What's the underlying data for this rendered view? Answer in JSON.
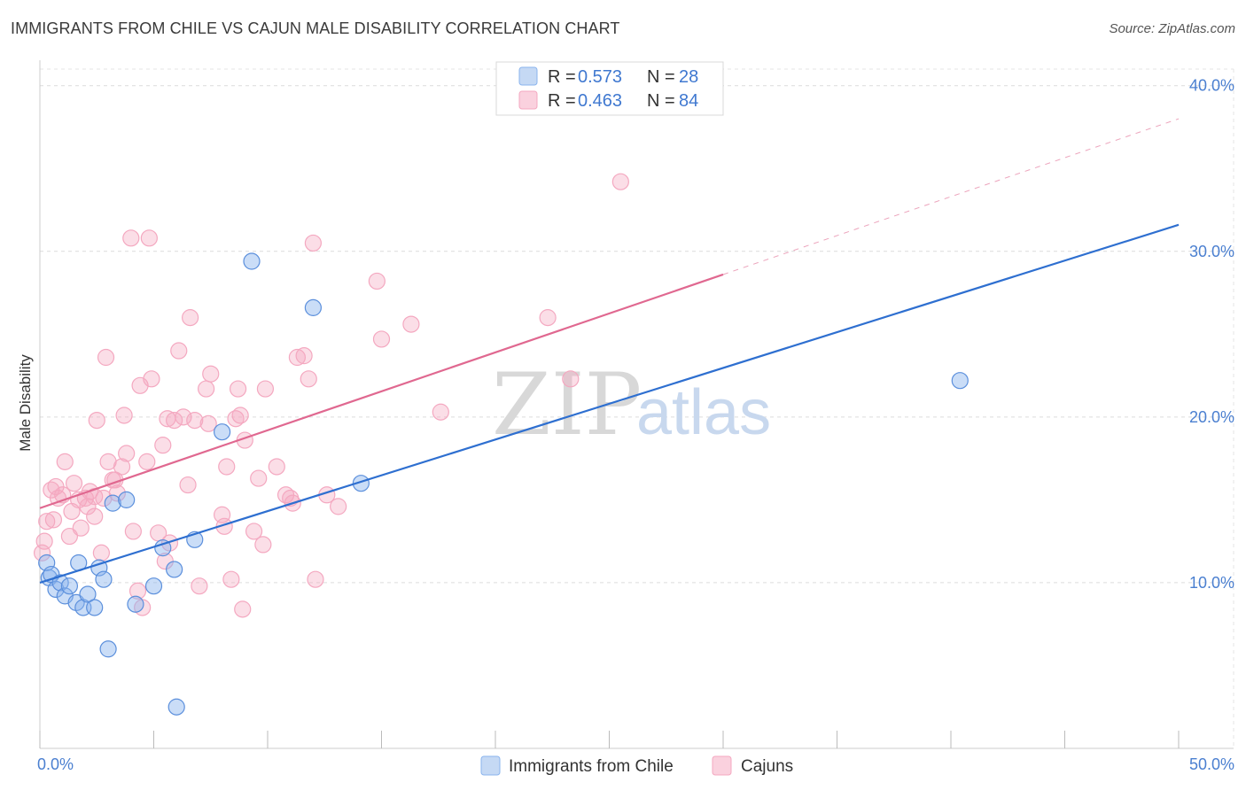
{
  "header": {
    "title": "IMMIGRANTS FROM CHILE VS CAJUN MALE DISABILITY CORRELATION CHART",
    "source": "Source: ZipAtlas.com"
  },
  "watermark": {
    "zip": "ZIP",
    "atlas": "atlas"
  },
  "colors": {
    "chile": "#8ab4ee",
    "chile_line": "#2e6fd0",
    "cajun": "#f4a8c0",
    "cajun_line": "#e06890",
    "tick_text": "#4a7fd0"
  },
  "legend": {
    "r_label": "R = ",
    "n_label": "N = ",
    "rows": [
      {
        "r": "0.573",
        "n": "28"
      },
      {
        "r": "0.463",
        "n": "84"
      }
    ]
  },
  "bottom_legend": [
    "Immigrants from Chile",
    "Cajuns"
  ],
  "chart_data": {
    "type": "scatter",
    "title": "IMMIGRANTS FROM CHILE VS CAJUN MALE DISABILITY CORRELATION CHART",
    "xlabel": "",
    "ylabel": "Male Disability",
    "xlim": [
      0,
      50
    ],
    "ylim": [
      0,
      41
    ],
    "x_tick_labels": [
      "0.0%",
      "50.0%"
    ],
    "y_ticks": [
      10,
      20,
      30,
      40
    ],
    "y_tick_labels": [
      "10.0%",
      "20.0%",
      "30.0%",
      "40.0%"
    ],
    "grid": true,
    "legend_position": "top-center",
    "series": [
      {
        "name": "Immigrants from Chile",
        "r": 0.573,
        "n": 28,
        "trend": {
          "x0": 0,
          "y0": 10.0,
          "x1": 50,
          "y1": 31.6,
          "dashed_from": null
        },
        "points": [
          [
            0.3,
            11.2
          ],
          [
            0.4,
            10.3
          ],
          [
            0.5,
            10.5
          ],
          [
            0.7,
            9.6
          ],
          [
            0.9,
            10.0
          ],
          [
            1.1,
            9.2
          ],
          [
            1.3,
            9.8
          ],
          [
            1.6,
            8.8
          ],
          [
            1.7,
            11.2
          ],
          [
            1.9,
            8.5
          ],
          [
            2.1,
            9.3
          ],
          [
            2.4,
            8.5
          ],
          [
            2.6,
            10.9
          ],
          [
            2.8,
            10.2
          ],
          [
            3.0,
            6.0
          ],
          [
            3.2,
            14.8
          ],
          [
            3.8,
            15.0
          ],
          [
            4.2,
            8.7
          ],
          [
            5.0,
            9.8
          ],
          [
            5.4,
            12.1
          ],
          [
            5.9,
            10.8
          ],
          [
            6.0,
            2.5
          ],
          [
            6.8,
            12.6
          ],
          [
            8.0,
            19.1
          ],
          [
            9.3,
            29.4
          ],
          [
            12.0,
            26.6
          ],
          [
            14.1,
            16.0
          ],
          [
            40.4,
            22.2
          ]
        ]
      },
      {
        "name": "Cajuns",
        "r": 0.463,
        "n": 84,
        "trend": {
          "x0": 0,
          "y0": 14.5,
          "x1": 50,
          "y1": 38.0,
          "dashed_from": 30
        },
        "points": [
          [
            0.1,
            11.8
          ],
          [
            0.2,
            12.5
          ],
          [
            0.3,
            13.7
          ],
          [
            0.5,
            15.6
          ],
          [
            0.6,
            13.8
          ],
          [
            0.7,
            15.8
          ],
          [
            0.8,
            15.1
          ],
          [
            1.0,
            15.3
          ],
          [
            1.1,
            17.3
          ],
          [
            1.3,
            12.8
          ],
          [
            1.4,
            14.3
          ],
          [
            1.5,
            16.0
          ],
          [
            1.7,
            15.0
          ],
          [
            1.8,
            13.3
          ],
          [
            2.0,
            15.1
          ],
          [
            2.1,
            14.6
          ],
          [
            2.2,
            15.5
          ],
          [
            2.4,
            14.0
          ],
          [
            2.5,
            19.8
          ],
          [
            2.7,
            11.8
          ],
          [
            2.8,
            15.1
          ],
          [
            2.9,
            23.6
          ],
          [
            3.0,
            17.3
          ],
          [
            3.2,
            16.2
          ],
          [
            3.3,
            16.2
          ],
          [
            3.4,
            15.4
          ],
          [
            3.6,
            17.0
          ],
          [
            3.7,
            20.1
          ],
          [
            3.8,
            17.8
          ],
          [
            4.0,
            30.8
          ],
          [
            4.1,
            13.1
          ],
          [
            4.3,
            9.5
          ],
          [
            4.4,
            21.9
          ],
          [
            4.5,
            8.5
          ],
          [
            4.7,
            17.3
          ],
          [
            4.8,
            30.8
          ],
          [
            4.9,
            22.3
          ],
          [
            5.2,
            13.0
          ],
          [
            5.4,
            18.3
          ],
          [
            5.5,
            11.3
          ],
          [
            5.6,
            19.9
          ],
          [
            5.7,
            12.4
          ],
          [
            5.9,
            19.8
          ],
          [
            6.1,
            24.0
          ],
          [
            6.3,
            20.0
          ],
          [
            6.5,
            15.9
          ],
          [
            6.6,
            26.0
          ],
          [
            6.8,
            19.8
          ],
          [
            7.0,
            9.8
          ],
          [
            7.3,
            21.7
          ],
          [
            7.4,
            19.6
          ],
          [
            7.5,
            22.6
          ],
          [
            8.0,
            14.1
          ],
          [
            8.1,
            13.4
          ],
          [
            8.2,
            17.0
          ],
          [
            8.4,
            10.2
          ],
          [
            8.6,
            19.9
          ],
          [
            8.7,
            21.7
          ],
          [
            8.8,
            20.1
          ],
          [
            8.9,
            8.4
          ],
          [
            9.0,
            18.6
          ],
          [
            9.4,
            13.1
          ],
          [
            9.6,
            16.3
          ],
          [
            9.8,
            12.3
          ],
          [
            9.9,
            21.7
          ],
          [
            10.4,
            17.0
          ],
          [
            10.8,
            15.3
          ],
          [
            11.0,
            15.1
          ],
          [
            11.1,
            14.8
          ],
          [
            11.3,
            23.6
          ],
          [
            11.6,
            23.7
          ],
          [
            11.8,
            22.3
          ],
          [
            12.0,
            30.5
          ],
          [
            12.1,
            10.2
          ],
          [
            12.6,
            15.3
          ],
          [
            13.1,
            14.6
          ],
          [
            14.8,
            28.2
          ],
          [
            15.0,
            24.7
          ],
          [
            16.3,
            25.6
          ],
          [
            17.6,
            20.3
          ],
          [
            22.3,
            26.0
          ],
          [
            23.3,
            22.3
          ],
          [
            25.5,
            34.2
          ],
          [
            2.4,
            15.2
          ]
        ]
      }
    ]
  }
}
